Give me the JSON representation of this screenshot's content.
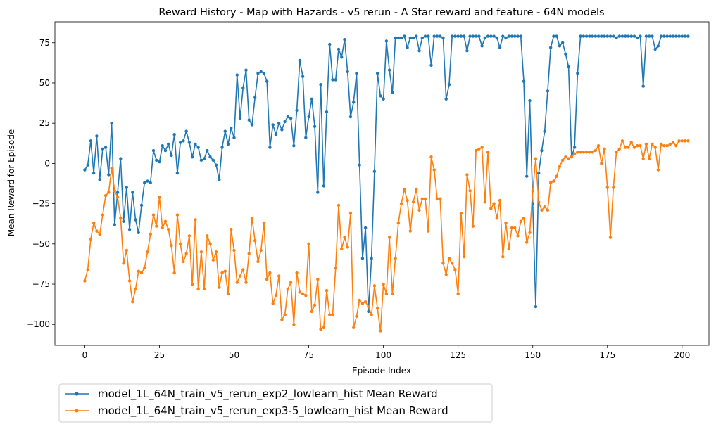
{
  "chart_data": {
    "type": "line",
    "title": "Reward History - Map with Hazards - v5 rerun - A Star reward and feature - 64N models",
    "xlabel": "Episode Index",
    "ylabel": "Mean Reward for Episode",
    "xlim": [
      -10,
      209
    ],
    "ylim": [
      -113,
      88
    ],
    "xticks": [
      0,
      25,
      50,
      75,
      100,
      125,
      150,
      175,
      200
    ],
    "yticks": [
      -100,
      -75,
      -50,
      -25,
      0,
      25,
      50,
      75
    ],
    "grid": false,
    "legend_position": "below-left-outside",
    "series": [
      {
        "name": "model_1L_64N_train_v5_rerun_exp2_lowlearn_hist Mean Reward",
        "color": "#1f77b4",
        "values": [
          -4,
          -1,
          14,
          -6,
          17,
          -10,
          9,
          10,
          -7,
          25,
          -38,
          -18,
          3,
          -36,
          -15,
          -41,
          -18,
          -35,
          -43,
          -26,
          -12,
          -11,
          -12,
          8,
          2,
          1,
          11,
          8,
          12,
          5,
          18,
          -6,
          13,
          14,
          20,
          13,
          4,
          12,
          10,
          2,
          3,
          8,
          4,
          2,
          -1,
          -10,
          10,
          20,
          12,
          22,
          16,
          55,
          28,
          47,
          58,
          27,
          24,
          41,
          56,
          57,
          56,
          51,
          10,
          24,
          18,
          25,
          21,
          26,
          29,
          28,
          11,
          33,
          64,
          54,
          16,
          29,
          40,
          23,
          -18,
          49,
          -14,
          32,
          74,
          52,
          52,
          71,
          66,
          77,
          57,
          29,
          38,
          56,
          -1,
          -59,
          -40,
          -92,
          -59,
          -5,
          56,
          42,
          40,
          76,
          58,
          44,
          78,
          78,
          78,
          79,
          72,
          78,
          78,
          79,
          70,
          78,
          79,
          79,
          61,
          79,
          79,
          79,
          78,
          40,
          49,
          79,
          79,
          79,
          79,
          79,
          70,
          79,
          79,
          79,
          79,
          73,
          78,
          79,
          79,
          79,
          78,
          72,
          79,
          78,
          79,
          79,
          79,
          79,
          79,
          51,
          -8,
          39,
          -25,
          -89,
          -6,
          8,
          20,
          45,
          72,
          79,
          79,
          73,
          75,
          68,
          60,
          4,
          10,
          56,
          79,
          79,
          79,
          79,
          79,
          79,
          79,
          79,
          79,
          79,
          79,
          79,
          78,
          79,
          79,
          79,
          79,
          79,
          79,
          78,
          79,
          48,
          79,
          79,
          79,
          71,
          73,
          79,
          79,
          79,
          79,
          79,
          79,
          79,
          79,
          79,
          79
        ]
      },
      {
        "name": "model_1L_64N_train_v5_rerun_exp3-5_lowlearn_hist Mean Reward",
        "color": "#ff7f0e",
        "values": [
          -73,
          -66,
          -47,
          -37,
          -42,
          -44,
          -32,
          -20,
          -18,
          -3,
          -17,
          -21,
          -34,
          -62,
          -54,
          -73,
          -86,
          -78,
          -67,
          -68,
          -65,
          -55,
          -44,
          -32,
          -39,
          -21,
          -40,
          -36,
          -41,
          -51,
          -68,
          -32,
          -50,
          -61,
          -56,
          -45,
          -75,
          -35,
          -78,
          -55,
          -78,
          -45,
          -50,
          -60,
          -55,
          -77,
          -68,
          -67,
          -81,
          -41,
          -54,
          -74,
          -70,
          -66,
          -74,
          -56,
          -34,
          -48,
          -61,
          -54,
          -37,
          -72,
          -68,
          -87,
          -82,
          -70,
          -97,
          -94,
          -78,
          -74,
          -100,
          -68,
          -80,
          -81,
          -82,
          -50,
          -92,
          -88,
          -72,
          -103,
          -102,
          -79,
          -94,
          -94,
          -65,
          -26,
          -53,
          -46,
          -52,
          -31,
          -102,
          -95,
          -85,
          -87,
          -86,
          -89,
          -94,
          -76,
          -90,
          -104,
          -75,
          -81,
          -46,
          -81,
          -59,
          -37,
          -25,
          -16,
          -23,
          -42,
          -24,
          -16,
          -29,
          -22,
          -22,
          -42,
          4,
          -4,
          -22,
          -22,
          -62,
          -69,
          -59,
          -62,
          -66,
          -81,
          -31,
          -58,
          -7,
          -17,
          -39,
          8,
          9,
          10,
          -24,
          7,
          -28,
          -25,
          -34,
          -23,
          -58,
          -37,
          -53,
          -40,
          -40,
          -45,
          -36,
          -34,
          -49,
          -43,
          -17,
          3,
          -24,
          -29,
          -27,
          -29,
          -12,
          -11,
          -8,
          -2,
          2,
          4,
          3,
          4,
          6,
          7,
          7,
          7,
          7,
          7,
          7,
          8,
          11,
          0,
          9,
          -15,
          -46,
          -15,
          7,
          9,
          14,
          10,
          10,
          13,
          10,
          11,
          11,
          3,
          12,
          3,
          12,
          10,
          -4,
          12,
          11,
          11,
          12,
          13,
          11,
          14,
          14,
          14,
          14
        ]
      }
    ]
  }
}
